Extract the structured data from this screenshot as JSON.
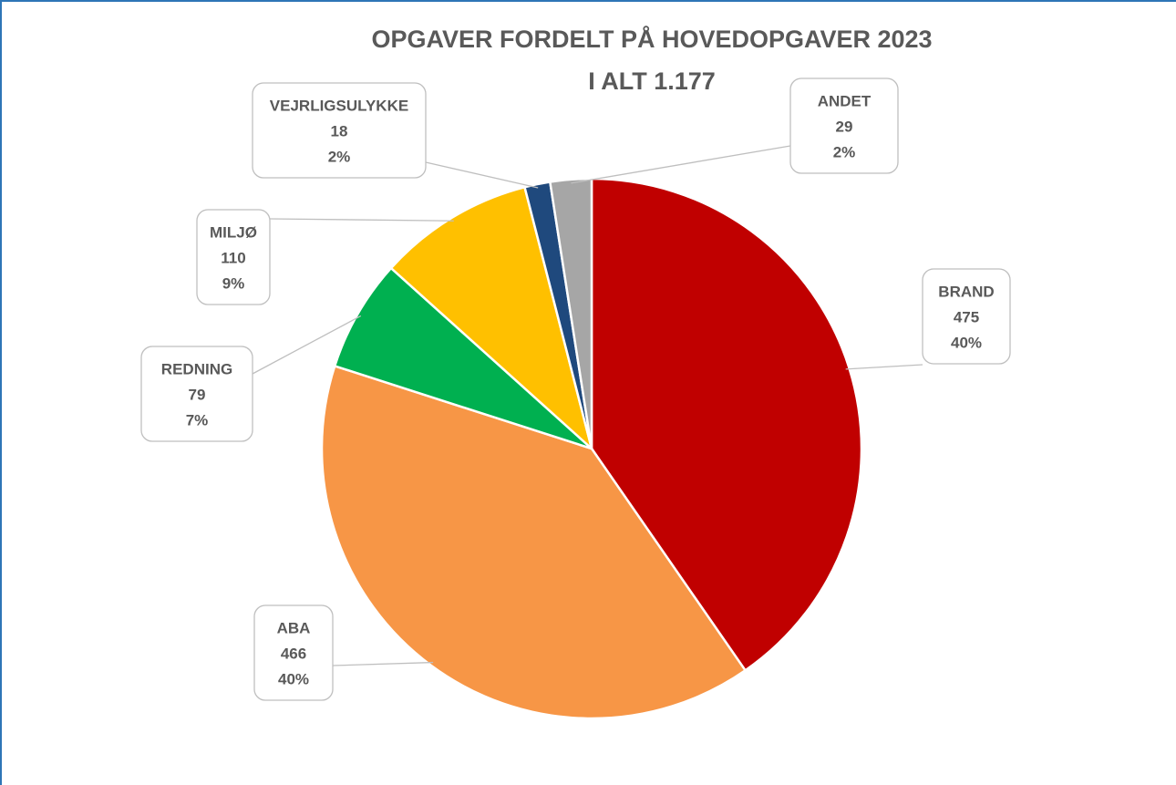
{
  "chart_data": {
    "type": "pie",
    "title": "OPGAVER FORDELT PÅ HOVEDOPGAVER 2023",
    "subtitle": "I ALT 1.177",
    "categories": [
      "BRAND",
      "ABA",
      "REDNING",
      "MILJØ",
      "VEJRLIGSULYKKE",
      "ANDET"
    ],
    "values": [
      475,
      466,
      79,
      110,
      18,
      29
    ],
    "percent_labels": [
      "40%",
      "40%",
      "7%",
      "9%",
      "2%",
      "2%"
    ],
    "colors": [
      "#c00000",
      "#f79646",
      "#00b050",
      "#ffc000",
      "#1f497d",
      "#a6a6a6"
    ]
  }
}
